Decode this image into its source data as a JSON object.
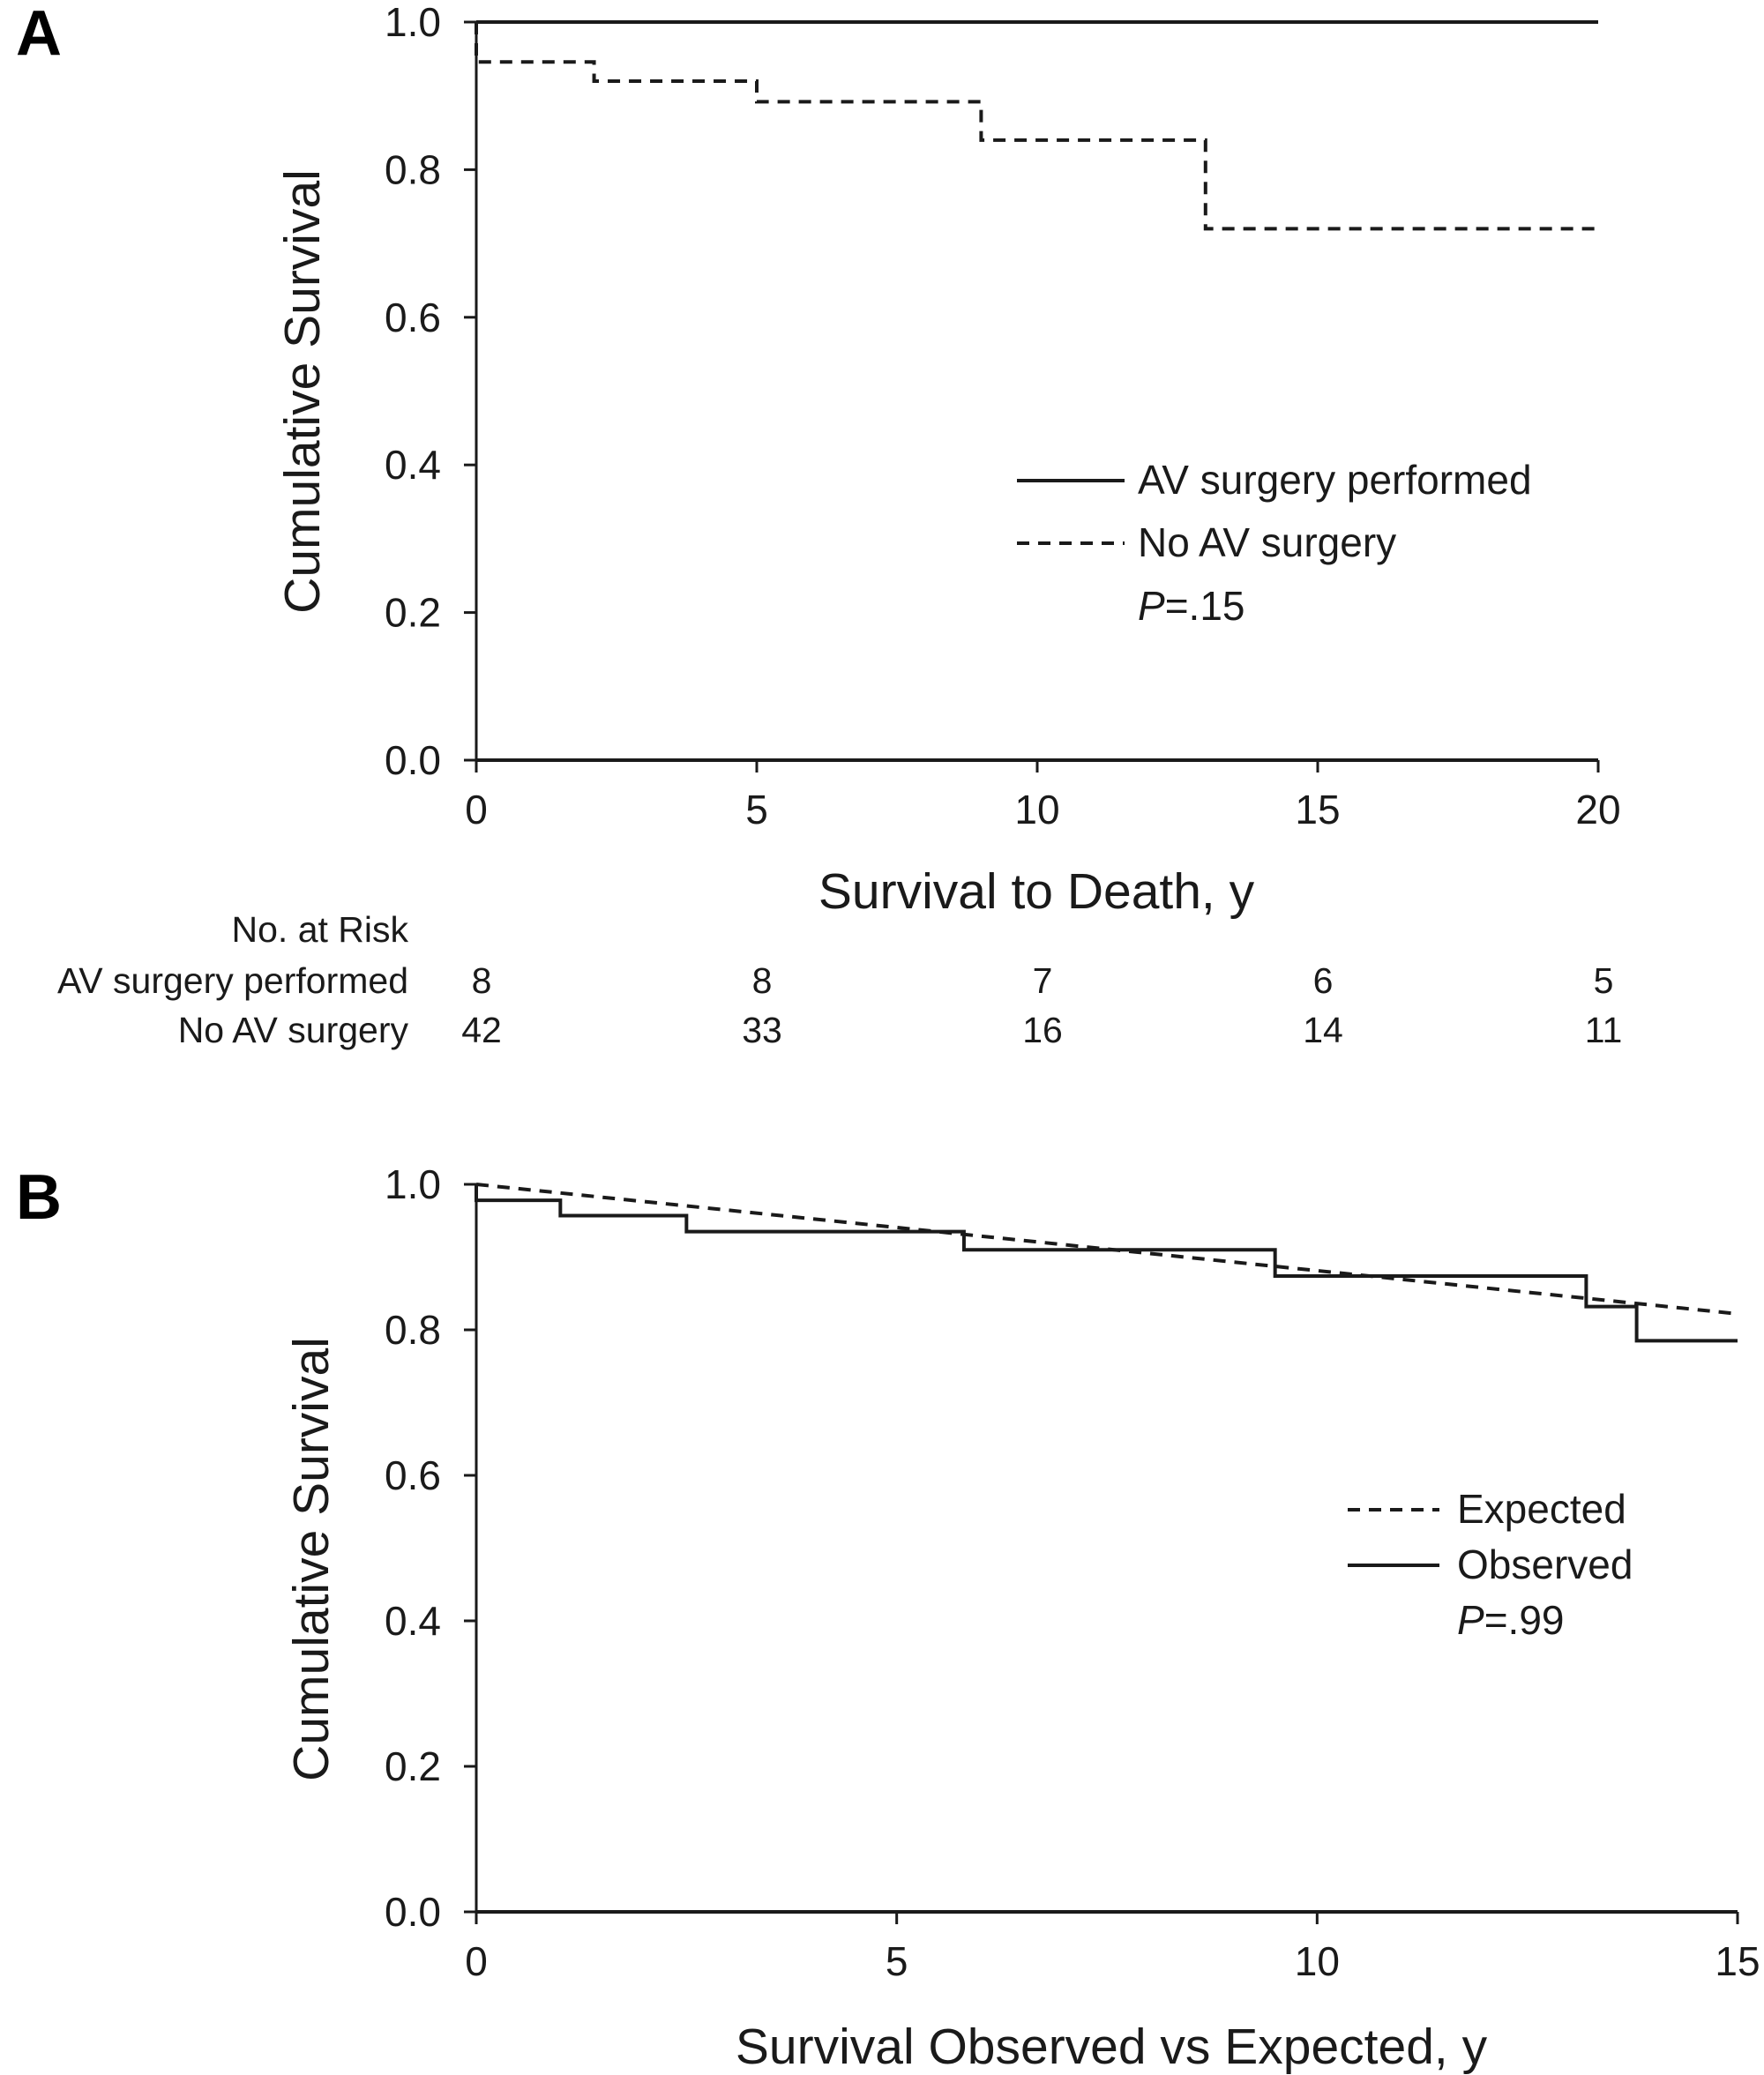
{
  "chart_data": [
    {
      "panel": "A",
      "type": "line",
      "subtype": "kaplan-meier-step",
      "xlabel": "Survival to Death, y",
      "ylabel": "Cumulative Survival",
      "xlim": [
        0,
        20
      ],
      "ylim": [
        0,
        1.0
      ],
      "xticks": [
        "0",
        "5",
        "10",
        "15",
        "20"
      ],
      "yticks": [
        "0.0",
        "0.2",
        "0.4",
        "0.6",
        "0.8",
        "1.0"
      ],
      "grid": false,
      "legend_position": "center-right",
      "series": [
        {
          "name": "AV surgery performed",
          "style": "solid",
          "x": [
            0,
            20
          ],
          "y": [
            1.0,
            1.0
          ]
        },
        {
          "name": "No AV surgery",
          "style": "dashed",
          "x": [
            0,
            2.1,
            5.0,
            9.0,
            13.0,
            20
          ],
          "y": [
            0.946,
            0.92,
            0.892,
            0.84,
            0.72,
            0.72
          ]
        }
      ],
      "annotation": {
        "p_label": "P",
        "p_value": "=.15"
      },
      "risk_table": {
        "title": "No. at Risk",
        "timepoints": [
          0,
          5,
          10,
          15,
          20
        ],
        "rows": [
          {
            "label": "AV surgery performed",
            "values": [
              "8",
              "8",
              "7",
              "6",
              "5"
            ]
          },
          {
            "label": "No AV surgery",
            "values": [
              "42",
              "33",
              "16",
              "14",
              "11"
            ]
          }
        ]
      }
    },
    {
      "panel": "B",
      "type": "line",
      "subtype": "kaplan-meier-step",
      "xlabel": "Survival Observed vs Expected, y",
      "ylabel": "Cumulative Survival",
      "xlim": [
        0,
        15
      ],
      "ylim": [
        0,
        1.0
      ],
      "xticks": [
        "0",
        "5",
        "10",
        "15"
      ],
      "yticks": [
        "0.0",
        "0.2",
        "0.4",
        "0.6",
        "0.8",
        "1.0"
      ],
      "grid": false,
      "legend_position": "center-right",
      "series": [
        {
          "name": "Expected",
          "style": "dashed",
          "step": false,
          "x": [
            0,
            15
          ],
          "y": [
            1.0,
            0.822
          ]
        },
        {
          "name": "Observed",
          "style": "solid",
          "step": true,
          "x": [
            0,
            1.0,
            2.5,
            5.8,
            9.5,
            13.2,
            13.8,
            15
          ],
          "y": [
            0.978,
            0.957,
            0.935,
            0.91,
            0.874,
            0.832,
            0.785,
            0.785
          ]
        }
      ],
      "annotation": {
        "p_label": "P",
        "p_value": "=.99"
      }
    }
  ]
}
